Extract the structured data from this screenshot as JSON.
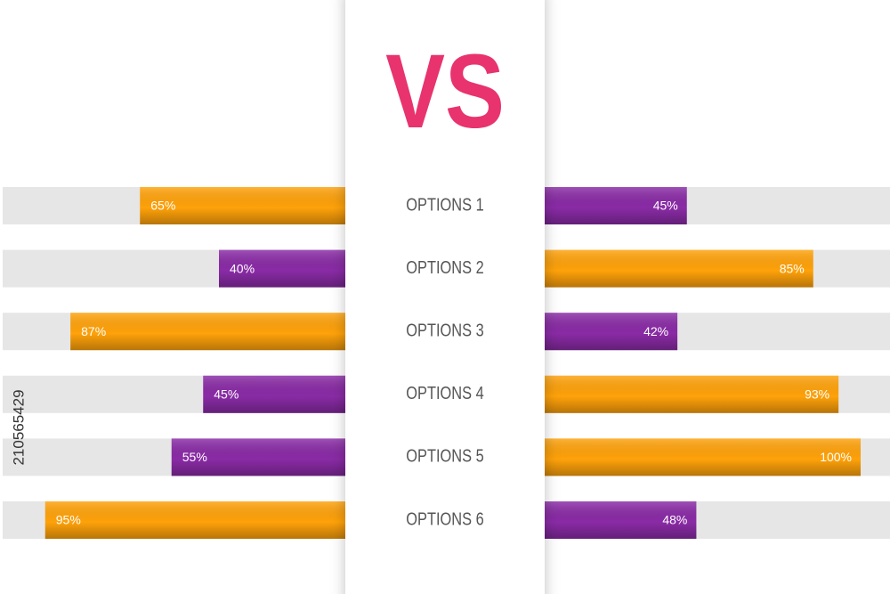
{
  "chart_data": {
    "type": "bar",
    "title": "VS",
    "watermark": "210565429",
    "categories": [
      "OPTIONS 1",
      "OPTIONS 2",
      "OPTIONS 3",
      "OPTIONS 4",
      "OPTIONS 5",
      "OPTIONS 6"
    ],
    "xlim": [
      0,
      100
    ],
    "series": [
      {
        "side": "left",
        "values": [
          65,
          40,
          87,
          45,
          55,
          95
        ],
        "value_labels": [
          "65%",
          "40%",
          "87%",
          "45%",
          "55%",
          "95%"
        ],
        "colors": [
          "#ffa20a",
          "#8a2ba6",
          "#ffa20a",
          "#8a2ba6",
          "#8a2ba6",
          "#ffa20a"
        ]
      },
      {
        "side": "right",
        "values": [
          45,
          85,
          42,
          93,
          100,
          48
        ],
        "value_labels": [
          "45%",
          "85%",
          "42%",
          "93%",
          "100%",
          "48%"
        ],
        "colors": [
          "#8a2ba6",
          "#ffa20a",
          "#8a2ba6",
          "#ffa20a",
          "#ffa20a",
          "#8a2ba6"
        ]
      }
    ]
  }
}
